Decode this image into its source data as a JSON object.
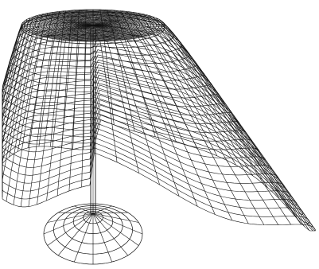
{
  "image": {
    "kind": "wireframe-illustration",
    "subject_icon": "tablecloth-on-round-table-wireframe",
    "colors": {
      "background": "#ffffff",
      "line": "#111111",
      "dense_center": "#000000"
    }
  }
}
